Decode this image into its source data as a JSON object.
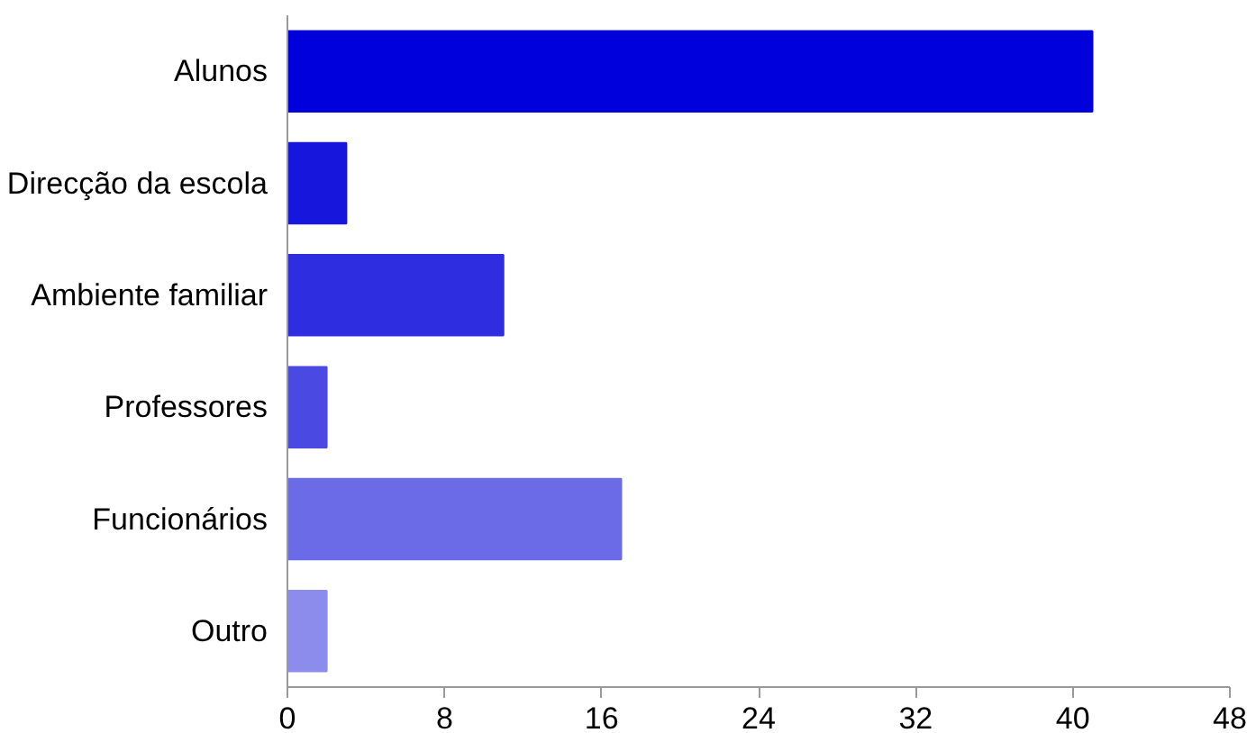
{
  "chart_data": {
    "type": "bar",
    "orientation": "horizontal",
    "categories": [
      "Alunos",
      "Direcção da escola",
      "Ambiente familiar",
      "Professores",
      "Funcionários",
      "Outro"
    ],
    "values": [
      41,
      3,
      11,
      2,
      17,
      2
    ],
    "colors": [
      "#0000dd",
      "#1616dd",
      "#2e2ee0",
      "#4a4ae3",
      "#6b6be8",
      "#8c8cec"
    ],
    "xlim": [
      0,
      48
    ],
    "xticks": [
      0,
      8,
      16,
      24,
      32,
      40,
      48
    ],
    "grid": false
  }
}
